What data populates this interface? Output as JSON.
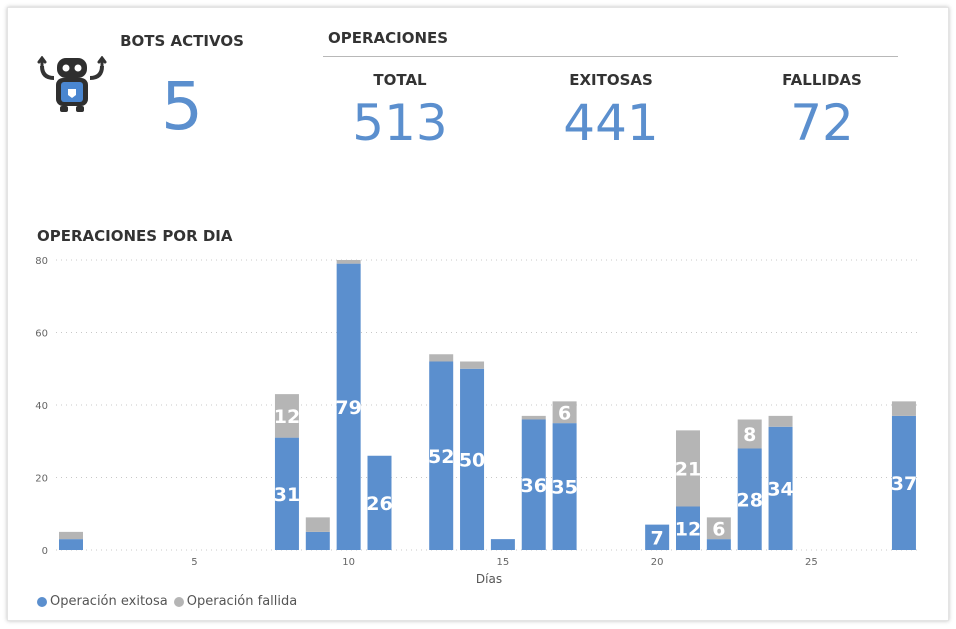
{
  "bots": {
    "title": "BOTS ACTIVOS",
    "value": "5",
    "icon": "robot-icon"
  },
  "operaciones": {
    "title": "OPERACIONES",
    "total": {
      "label": "TOTAL",
      "value": "513"
    },
    "exitosas": {
      "label": "EXITOSAS",
      "value": "441"
    },
    "fallidas": {
      "label": "FALLIDAS",
      "value": "72"
    }
  },
  "chart_section": {
    "title": "OPERACIONES POR DIA"
  },
  "colors": {
    "success": "#5b8fce",
    "failed": "#b5b5b5",
    "kpi": "#5b8fce"
  },
  "chart_data": {
    "type": "bar",
    "stacked": true,
    "title": "OPERACIONES POR DIA",
    "xlabel": "Días",
    "ylabel": "",
    "xlim": [
      1,
      28
    ],
    "ylim": [
      0,
      80
    ],
    "x_ticks": [
      "5",
      "10",
      "15",
      "20",
      "25"
    ],
    "x_tick_values": [
      5,
      10,
      15,
      20,
      25
    ],
    "y_ticks": [
      "0",
      "20",
      "40",
      "60",
      "80"
    ],
    "y_tick_values": [
      0,
      20,
      40,
      60,
      80
    ],
    "grid": true,
    "legend_position": "bottom-left",
    "x": [
      1,
      8,
      9,
      10,
      11,
      13,
      14,
      15,
      16,
      17,
      20,
      21,
      22,
      23,
      24,
      28
    ],
    "series": [
      {
        "name": "Operación exitosa",
        "values": [
          3,
          31,
          5,
          79,
          26,
          52,
          50,
          3,
          36,
          35,
          7,
          12,
          3,
          28,
          34,
          37
        ],
        "labels": [
          "",
          "31",
          "",
          "79",
          "26",
          "52",
          "50",
          "",
          "36",
          "35",
          "7",
          "12",
          "",
          "28",
          "34",
          "37"
        ]
      },
      {
        "name": "Operación fallida",
        "values": [
          2,
          12,
          4,
          1,
          0,
          2,
          2,
          0,
          1,
          6,
          0,
          21,
          6,
          8,
          3,
          4
        ],
        "labels": [
          "",
          "12",
          "",
          "",
          "",
          "",
          "",
          "",
          "",
          "6",
          "",
          "21",
          "6",
          "8",
          "",
          ""
        ]
      }
    ]
  }
}
